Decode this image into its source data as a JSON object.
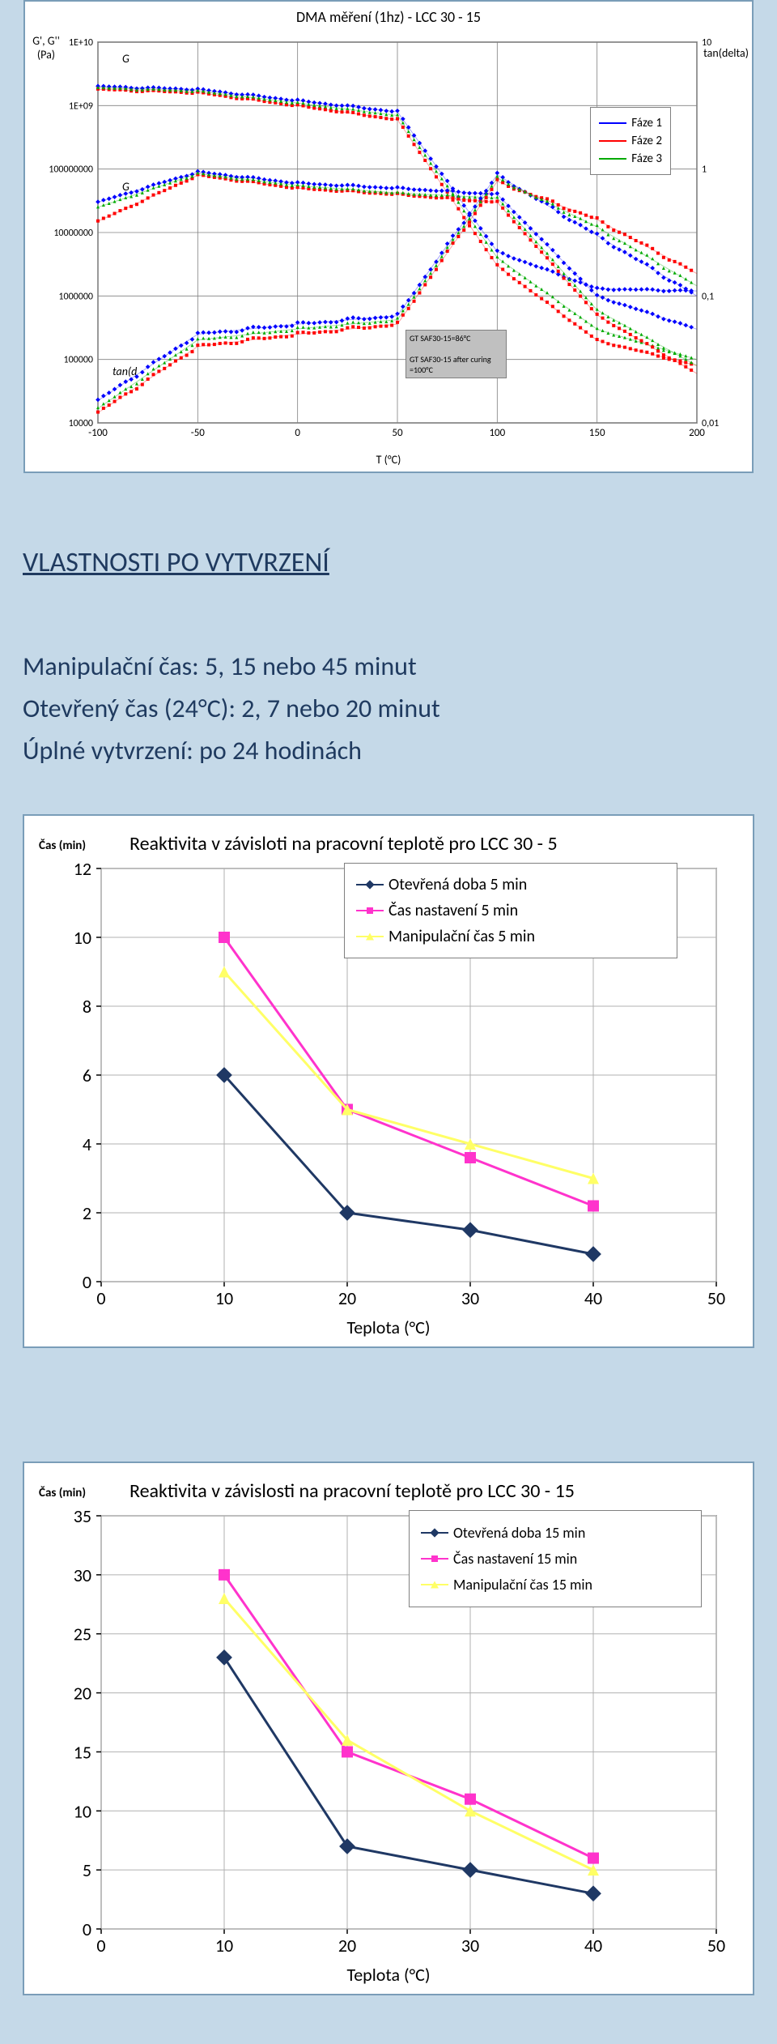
{
  "dma_chart": {
    "type": "line-log",
    "title": "DMA měření (1hz) - LCC 30 - 15",
    "title_fontsize": 18,
    "x_label": "T (°C)",
    "y_left_label": "G', G'' (Pa)",
    "y_right_label": "tan(delta)",
    "xlim": [
      -100,
      200
    ],
    "xtick_step": 50,
    "y_left_ticks": [
      "1E+10",
      "1E+09",
      "100000000",
      "10000000",
      "1000000",
      "100000",
      "10000"
    ],
    "y_right_ticks": [
      "10",
      "1",
      "0,1",
      "0,01"
    ],
    "grid_color": "#808080",
    "background_color": "#ffffff",
    "series": [
      {
        "label": "Fáze 1",
        "color": "#0000ff",
        "marker": "diamond"
      },
      {
        "label": "Fáze 2",
        "color": "#ff0000",
        "marker": "square"
      },
      {
        "label": "Fáze 3",
        "color": "#00aa00",
        "marker": "triangle"
      }
    ],
    "annotations": [
      {
        "text": "GT SAF30-15=86°C\n\nGT SAF30-15 after curing =100°C"
      }
    ],
    "inline_labels": {
      "g1": "G",
      "g2": "G",
      "tand": "tan(d"
    },
    "g_prime_f1": {
      "x": [
        -100,
        -50,
        0,
        50,
        100,
        150,
        200
      ],
      "y": [
        2000000000.0,
        1800000000.0,
        1200000000.0,
        800000000.0,
        5000000.0,
        1300000.0,
        1200000.0
      ]
    },
    "g_prime_f2": {
      "x": [
        -100,
        -50,
        0,
        50,
        100,
        150,
        200
      ],
      "y": [
        1800000000.0,
        1600000000.0,
        1000000000.0,
        600000000.0,
        3000000.0,
        200000.0,
        80000.0
      ]
    },
    "g_prime_f3": {
      "x": [
        -100,
        -50,
        0,
        50,
        100,
        150,
        200
      ],
      "y": [
        1900000000.0,
        1700000000.0,
        1100000000.0,
        700000000.0,
        4000000.0,
        300000.0,
        100000.0
      ]
    },
    "g_dblprime_f1": {
      "x": [
        -100,
        -50,
        0,
        50,
        100,
        150,
        200
      ],
      "y": [
        30000000.0,
        90000000.0,
        60000000.0,
        50000000.0,
        40000000.0,
        1000000.0,
        300000.0
      ]
    },
    "g_dblprime_f2": {
      "x": [
        -100,
        -50,
        0,
        50,
        100,
        150,
        200
      ],
      "y": [
        15000000.0,
        80000000.0,
        50000000.0,
        40000000.0,
        30000000.0,
        500000.0,
        60000.0
      ]
    },
    "g_dblprime_f3": {
      "x": [
        -100,
        -50,
        0,
        50,
        100,
        150,
        200
      ],
      "y": [
        25000000.0,
        85000000.0,
        55000000.0,
        42000000.0,
        35000000.0,
        600000.0,
        80000.0
      ]
    },
    "tand_f1": {
      "x": [
        -100,
        -50,
        0,
        50,
        100,
        150,
        200
      ],
      "y": [
        0.015,
        0.05,
        0.06,
        0.07,
        0.9,
        0.3,
        0.1
      ]
    },
    "tand_f2": {
      "x": [
        -100,
        -50,
        0,
        50,
        100,
        150,
        200
      ],
      "y": [
        0.012,
        0.04,
        0.05,
        0.06,
        0.8,
        0.4,
        0.15
      ]
    },
    "tand_f3": {
      "x": [
        -100,
        -50,
        0,
        50,
        100,
        150,
        200
      ],
      "y": [
        0.013,
        0.045,
        0.055,
        0.065,
        0.85,
        0.35,
        0.12
      ]
    }
  },
  "section": {
    "heading": "VLASTNOSTI PO VYTVRZENÍ",
    "lines": [
      "Manipulační čas: 5, 15 nebo 45 minut",
      "Otevřený čas (24°C): 2, 7 nebo 20 minut",
      "Úplné vytvrzení: po 24 hodinách"
    ]
  },
  "react5_chart": {
    "type": "line",
    "title": "Reaktivita v závisloti na pracovní teplotě pro LCC 30 - 5",
    "title_fontsize": 24,
    "y_label": "Čas (min)",
    "y_label_fontsize": 15,
    "x_label": "Teplota (°C)",
    "x_label_fontsize": 22,
    "xlim": [
      0,
      50
    ],
    "xtick_step": 10,
    "ylim": [
      0,
      12
    ],
    "ytick_step": 2,
    "grid_color": "#b0b0b0",
    "background_color": "#ffffff",
    "series": [
      {
        "label": "Otevřená doba 5 min",
        "color": "#1f3864",
        "marker": "diamond",
        "x": [
          10,
          20,
          30,
          40
        ],
        "y": [
          6.0,
          2.0,
          1.5,
          0.8
        ]
      },
      {
        "label": "Čas nastavení 5 min",
        "color": "#ff33cc",
        "marker": "square",
        "x": [
          10,
          20,
          30,
          40
        ],
        "y": [
          10.0,
          5.0,
          3.6,
          2.2
        ]
      },
      {
        "label": "Manipulační čas 5 min",
        "color": "#ffff66",
        "marker": "triangle",
        "x": [
          10,
          20,
          30,
          40
        ],
        "y": [
          9.0,
          5.0,
          4.0,
          3.0
        ]
      }
    ]
  },
  "react15_chart": {
    "type": "line",
    "title": "Reaktivita v závislosti na pracovní teplotě pro LCC 30 - 15",
    "title_fontsize": 24,
    "y_label": "Čas (min)",
    "y_label_fontsize": 15,
    "x_label": "Teplota (°C)",
    "x_label_fontsize": 22,
    "xlim": [
      0,
      50
    ],
    "xtick_step": 10,
    "ylim": [
      0,
      35
    ],
    "ytick_step": 5,
    "grid_color": "#b0b0b0",
    "background_color": "#ffffff",
    "series": [
      {
        "label": "Otevřená doba 15 min",
        "color": "#1f3864",
        "marker": "diamond",
        "x": [
          10,
          20,
          30,
          40
        ],
        "y": [
          23,
          7,
          5,
          3
        ]
      },
      {
        "label": "Čas nastavení 15 min",
        "color": "#ff33cc",
        "marker": "square",
        "x": [
          10,
          20,
          30,
          40
        ],
        "y": [
          30,
          15,
          11,
          6
        ]
      },
      {
        "label": "Manipulační čas 15 min",
        "color": "#ffff66",
        "marker": "triangle",
        "x": [
          10,
          20,
          30,
          40
        ],
        "y": [
          28,
          16,
          10,
          5
        ]
      }
    ]
  }
}
